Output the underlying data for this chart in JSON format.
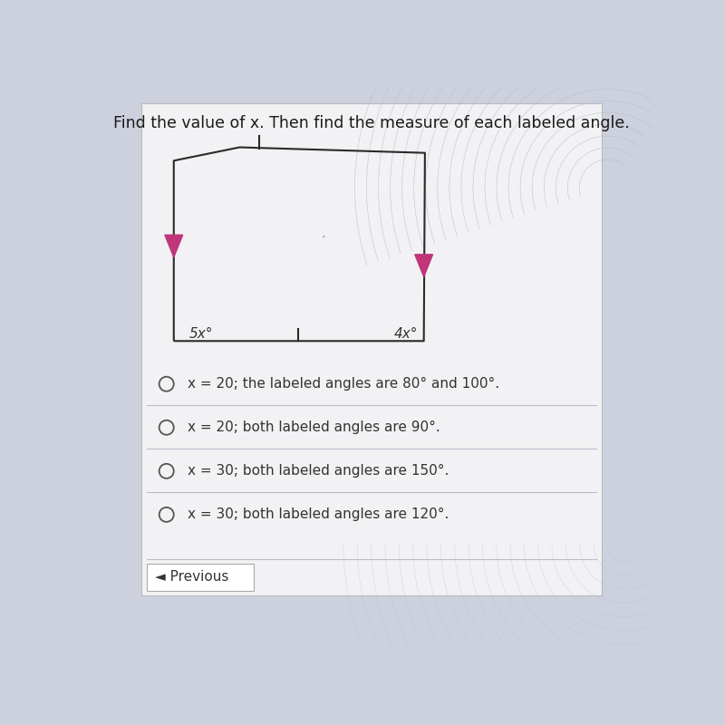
{
  "title": "Find the value of x. Then find the measure of each labeled angle.",
  "title_fontsize": 12.5,
  "bg_color": "#cdd1de",
  "card_color": "#f0f0f2",
  "arrow_color": "#c0367a",
  "label_5x": "5x°",
  "label_4x": "4x°",
  "choices": [
    "x = 20; the labeled angles are 80° and 100°.",
    "x = 20; both labeled angles are 90°.",
    "x = 30; both labeled angles are 150°.",
    "x = 30; both labeled angles are 120°."
  ],
  "divider_color": "#b8bcc8",
  "previous_text": "◄ Previous"
}
